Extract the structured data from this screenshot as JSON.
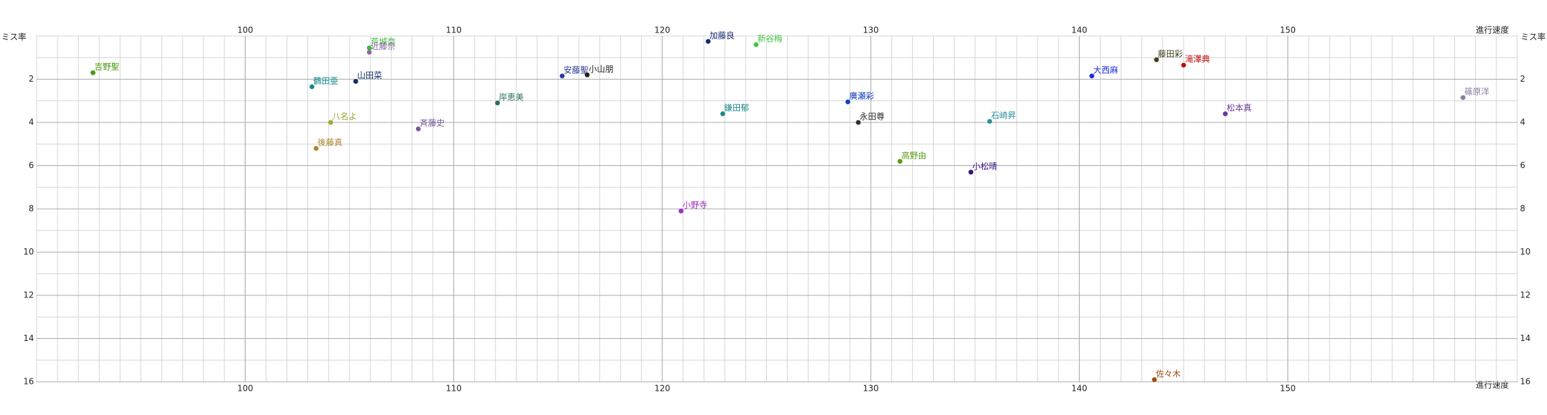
{
  "chart_data": {
    "type": "scatter",
    "x_label": "進行速度",
    "y_label": "ミス率",
    "xlim": [
      90,
      161
    ],
    "ylim": [
      16,
      0
    ],
    "xticks": [
      100,
      110,
      120,
      130,
      140,
      150
    ],
    "yticks": [
      2,
      4,
      6,
      8,
      10,
      12,
      14,
      16
    ],
    "grid": true,
    "minor_grid_step": 1,
    "series": [
      {
        "name": "吉野聖",
        "color": "#4a9a10",
        "x": [
          92.7
        ],
        "values": [
          1.7
        ]
      },
      {
        "name": "荒城奈",
        "color": "#3cb83c",
        "x": [
          105.95
        ],
        "values": [
          0.55
        ]
      },
      {
        "name": "近藤奈",
        "color": "#8a6aa0",
        "x": [
          105.95
        ],
        "values": [
          0.75
        ]
      },
      {
        "name": "鶴田亜",
        "color": "#138a8a",
        "x": [
          103.2
        ],
        "values": [
          2.35
        ]
      },
      {
        "name": "山田菜",
        "color": "#10306a",
        "x": [
          105.3
        ],
        "values": [
          2.1
        ]
      },
      {
        "name": "八名よ",
        "color": "#a0a838",
        "x": [
          104.1
        ],
        "values": [
          4.0
        ]
      },
      {
        "name": "後藤真",
        "color": "#a88830",
        "x": [
          103.4
        ],
        "values": [
          5.2
        ]
      },
      {
        "name": "斉藤史",
        "color": "#7a5a9a",
        "x": [
          108.3
        ],
        "values": [
          4.3
        ]
      },
      {
        "name": "岸恵美",
        "color": "#2a7060",
        "x": [
          112.1
        ],
        "values": [
          3.1
        ]
      },
      {
        "name": "安藤聖",
        "color": "#2a3a9a",
        "x": [
          115.2
        ],
        "values": [
          1.85
        ]
      },
      {
        "name": "小山朋",
        "color": "#202020",
        "x": [
          116.4
        ],
        "values": [
          1.8
        ]
      },
      {
        "name": "小野寺",
        "color": "#a030c0",
        "x": [
          120.9
        ],
        "values": [
          8.1
        ]
      },
      {
        "name": "加藤良",
        "color": "#1a2a70",
        "x": [
          122.2
        ],
        "values": [
          0.25
        ]
      },
      {
        "name": "新谷梅",
        "color": "#40c840",
        "x": [
          124.5
        ],
        "values": [
          0.4
        ]
      },
      {
        "name": "鎌田郁",
        "color": "#208888",
        "x": [
          122.9
        ],
        "values": [
          3.6
        ]
      },
      {
        "name": "廣瀬彩",
        "color": "#1040c0",
        "x": [
          128.9
        ],
        "values": [
          3.05
        ]
      },
      {
        "name": "永田尊",
        "color": "#303030",
        "x": [
          129.4
        ],
        "values": [
          4.0
        ]
      },
      {
        "name": "高野由",
        "color": "#5a9a10",
        "x": [
          131.4
        ],
        "values": [
          5.8
        ]
      },
      {
        "name": "小松晴",
        "color": "#3a1080",
        "x": [
          134.8
        ],
        "values": [
          6.3
        ]
      },
      {
        "name": "石崎昇",
        "color": "#2a90a0",
        "x": [
          135.7
        ],
        "values": [
          3.95
        ]
      },
      {
        "name": "大西麻",
        "color": "#1a2ae0",
        "x": [
          140.6
        ],
        "values": [
          1.85
        ]
      },
      {
        "name": "藤田彩",
        "color": "#404020",
        "x": [
          143.7
        ],
        "values": [
          1.1
        ]
      },
      {
        "name": "滝澤典",
        "color": "#c01010",
        "x": [
          145.0
        ],
        "values": [
          1.35
        ]
      },
      {
        "name": "佐々木",
        "color": "#a04a10",
        "x": [
          143.6
        ],
        "values": [
          15.9
        ]
      },
      {
        "name": "松本真",
        "color": "#6a3a9a",
        "x": [
          147.0
        ],
        "values": [
          3.6
        ]
      },
      {
        "name": "篠原洋",
        "color": "#8a7aa0",
        "x": [
          158.4
        ],
        "values": [
          2.85
        ]
      }
    ]
  }
}
